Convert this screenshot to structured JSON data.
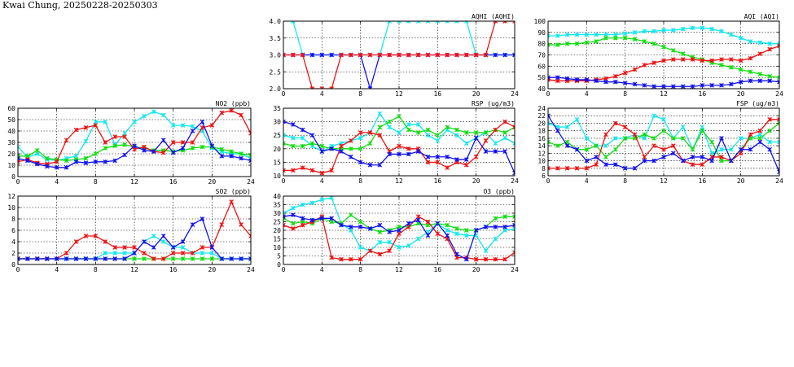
{
  "page": {
    "title": "Kwai Chung, 20250228-20250303"
  },
  "colors": {
    "red": "#ee1111",
    "green": "#11dd11",
    "blue": "#1111ee",
    "cyan": "#11e8ee"
  },
  "chart_data": [
    {
      "id": "aqhi",
      "type": "line",
      "title": "AQHI (AQHI)",
      "xlim": [
        0,
        24
      ],
      "xticks": [
        0,
        4,
        8,
        12,
        16,
        20,
        24
      ],
      "ylim": [
        2.0,
        4.0
      ],
      "yticks": [
        "2.0",
        "2.5",
        "3.0",
        "3.5",
        "4.0"
      ],
      "grid": true,
      "legend": "none",
      "series": [
        {
          "color": "cyan",
          "values": [
            4.05,
            4,
            3,
            3,
            3,
            3,
            3,
            3,
            3,
            3,
            3,
            4,
            4,
            4,
            4,
            4,
            4,
            4,
            4,
            4,
            3,
            3,
            3,
            3,
            3
          ]
        },
        {
          "color": "blue",
          "values": [
            3,
            3,
            3,
            3,
            3,
            3,
            3,
            3,
            3,
            2,
            3,
            3,
            3,
            3,
            3,
            3,
            3,
            3,
            3,
            3,
            3,
            3,
            3,
            3,
            3
          ]
        },
        {
          "color": "red",
          "values": [
            3,
            3,
            3,
            2,
            2,
            2,
            3,
            3,
            3,
            3,
            3,
            3,
            3,
            3,
            3,
            3,
            3,
            3,
            3,
            3,
            3,
            3,
            4,
            4,
            4
          ]
        }
      ]
    },
    {
      "id": "aqi",
      "type": "line",
      "title": "AQI (AQI)",
      "xlim": [
        0,
        24
      ],
      "xticks": [
        0,
        4,
        8,
        12,
        16,
        20,
        24
      ],
      "ylim": [
        40,
        100
      ],
      "yticks": [
        "40",
        "50",
        "60",
        "70",
        "80",
        "90",
        "100"
      ],
      "grid": true,
      "legend": "none",
      "series": [
        {
          "color": "cyan",
          "values": [
            87,
            87,
            88,
            88,
            88,
            88,
            88,
            88,
            89,
            90,
            91,
            91,
            92,
            92,
            93,
            94,
            94,
            93,
            91,
            88,
            85,
            82,
            81,
            80,
            80
          ]
        },
        {
          "color": "green",
          "values": [
            79,
            79,
            80,
            80,
            81,
            82,
            85,
            85,
            85,
            84,
            82,
            80,
            77,
            74,
            71,
            68,
            66,
            63,
            61,
            59,
            57,
            55,
            53,
            51,
            50
          ]
        },
        {
          "color": "red",
          "values": [
            48,
            47,
            47,
            47,
            47,
            48,
            49,
            51,
            54,
            57,
            61,
            63,
            65,
            66,
            66,
            66,
            65,
            65,
            66,
            66,
            65,
            67,
            71,
            75,
            78
          ]
        },
        {
          "color": "blue",
          "values": [
            50,
            50,
            49,
            48,
            48,
            47,
            46,
            46,
            45,
            44,
            43,
            42,
            42,
            42,
            42,
            42,
            43,
            43,
            43,
            44,
            46,
            47,
            47,
            47,
            46
          ]
        }
      ]
    },
    {
      "id": "no2",
      "type": "line",
      "title": "NO2 (ppb)",
      "xlim": [
        0,
        24
      ],
      "xticks": [
        0,
        4,
        8,
        12,
        16,
        20,
        24
      ],
      "ylim": [
        0,
        60
      ],
      "yticks": [
        "0",
        "10",
        "20",
        "30",
        "40",
        "50",
        "60"
      ],
      "grid": true,
      "legend": "none",
      "series": [
        {
          "color": "cyan",
          "values": [
            26,
            17,
            20,
            15,
            14,
            16,
            18,
            31,
            48,
            48,
            28,
            38,
            48,
            53,
            57,
            54,
            45,
            45,
            44,
            40,
            25,
            22,
            20,
            20,
            16
          ]
        },
        {
          "color": "green",
          "values": [
            18,
            18,
            23,
            16,
            15,
            14,
            15,
            16,
            20,
            25,
            27,
            28,
            26,
            25,
            23,
            23,
            22,
            23,
            25,
            26,
            26,
            24,
            22,
            20,
            19
          ]
        },
        {
          "color": "red",
          "values": [
            13,
            15,
            12,
            11,
            13,
            32,
            41,
            43,
            45,
            30,
            35,
            35,
            24,
            26,
            22,
            21,
            30,
            30,
            30,
            43,
            45,
            56,
            58,
            54,
            38
          ]
        },
        {
          "color": "blue",
          "values": [
            16,
            14,
            11,
            9,
            8,
            8,
            13,
            12,
            13,
            13,
            14,
            19,
            27,
            23,
            22,
            32,
            21,
            25,
            40,
            48,
            27,
            18,
            18,
            16,
            14
          ]
        }
      ]
    },
    {
      "id": "rsp",
      "type": "line",
      "title": "RSP (ug/m3)",
      "xlim": [
        0,
        24
      ],
      "xticks": [
        0,
        4,
        8,
        12,
        16,
        20,
        24
      ],
      "ylim": [
        10,
        35
      ],
      "yticks": [
        "10",
        "15",
        "20",
        "25",
        "30",
        "35"
      ],
      "grid": true,
      "legend": "none",
      "series": [
        {
          "color": "cyan",
          "values": [
            25,
            24,
            24,
            21,
            19,
            21,
            22,
            23,
            24,
            26,
            33,
            28,
            26,
            29,
            29,
            25,
            23,
            27,
            25,
            22,
            24,
            26,
            22,
            24,
            22
          ]
        },
        {
          "color": "green",
          "values": [
            22,
            21,
            21,
            22,
            21,
            20,
            20,
            20,
            20,
            22,
            28,
            30,
            32,
            27,
            26,
            27,
            25,
            28,
            27,
            26,
            26,
            26,
            27,
            26,
            28
          ]
        },
        {
          "color": "red",
          "values": [
            12,
            12,
            13,
            12,
            11,
            12,
            21,
            23,
            26,
            26,
            25,
            19,
            21,
            20,
            20,
            15,
            15,
            13,
            15,
            14,
            17,
            23,
            27,
            30,
            28
          ]
        },
        {
          "color": "blue",
          "values": [
            30,
            29,
            27,
            25,
            19,
            20,
            19,
            17,
            15,
            14,
            14,
            18,
            18,
            18,
            19,
            17,
            17,
            17,
            16,
            16,
            24,
            19,
            19,
            19,
            11
          ]
        }
      ]
    },
    {
      "id": "fsp",
      "type": "line",
      "title": "FSP (ug/m3)",
      "xlim": [
        0,
        24
      ],
      "xticks": [
        0,
        4,
        8,
        12,
        16,
        20,
        24
      ],
      "ylim": [
        6,
        24
      ],
      "yticks": [
        "6",
        "8",
        "10",
        "12",
        "14",
        "16",
        "18",
        "20",
        "22",
        "24"
      ],
      "grid": true,
      "legend": "none",
      "series": [
        {
          "color": "cyan",
          "values": [
            20,
            19,
            19,
            21,
            16,
            14,
            14,
            16,
            16,
            17,
            16,
            22,
            21,
            16,
            19,
            13,
            19,
            12,
            13,
            13,
            16,
            16,
            17,
            15,
            15
          ]
        },
        {
          "color": "green",
          "values": [
            15,
            14,
            15,
            13,
            13,
            14,
            11,
            13,
            16,
            16,
            17,
            16,
            18,
            16,
            16,
            13,
            18,
            15,
            10,
            10,
            13,
            16,
            16,
            18,
            20
          ]
        },
        {
          "color": "red",
          "values": [
            8,
            8,
            8,
            8,
            8,
            9,
            17,
            20,
            19,
            17,
            11,
            14,
            13,
            14,
            10,
            9,
            9,
            11,
            11,
            10,
            12,
            17,
            18,
            21,
            21
          ]
        },
        {
          "color": "blue",
          "values": [
            22,
            18,
            14,
            13,
            10,
            11,
            9,
            9,
            8,
            8,
            10,
            10,
            11,
            12,
            10,
            11,
            11,
            10,
            16,
            10,
            13,
            13,
            15,
            13,
            7
          ]
        }
      ]
    },
    {
      "id": "so2",
      "type": "line",
      "title": "SO2 (ppb)",
      "xlim": [
        0,
        24
      ],
      "xticks": [
        0,
        4,
        8,
        12,
        16,
        20,
        24
      ],
      "ylim": [
        0,
        12
      ],
      "yticks": [
        "0",
        "2",
        "4",
        "6",
        "8",
        "10",
        "12"
      ],
      "grid": true,
      "legend": "none",
      "series": [
        {
          "color": "cyan",
          "values": [
            1,
            1,
            1,
            1,
            1,
            1,
            1,
            1,
            1,
            2,
            2,
            2,
            2,
            4,
            5,
            4,
            3,
            3,
            2,
            2,
            2,
            1,
            1,
            1,
            1
          ]
        },
        {
          "color": "green",
          "values": [
            1,
            1,
            1,
            1,
            1,
            1,
            1,
            1,
            1,
            1,
            1,
            1,
            1,
            1,
            1,
            1,
            1,
            1,
            1,
            1,
            1,
            1,
            1,
            1,
            1
          ]
        },
        {
          "color": "red",
          "values": [
            1,
            1,
            1,
            1,
            1,
            2,
            4,
            5,
            5,
            4,
            3,
            3,
            3,
            2,
            1,
            1,
            2,
            2,
            2,
            3,
            3,
            7,
            11,
            7,
            5
          ]
        },
        {
          "color": "blue",
          "values": [
            1,
            1,
            1,
            1,
            1,
            1,
            1,
            1,
            1,
            1,
            1,
            1,
            2,
            4,
            3,
            5,
            3,
            4,
            7,
            8,
            3,
            1,
            1,
            1,
            1
          ]
        }
      ]
    },
    {
      "id": "o3",
      "type": "line",
      "title": "O3 (ppb)",
      "xlim": [
        0,
        24
      ],
      "xticks": [
        0,
        4,
        8,
        12,
        16,
        20,
        24
      ],
      "ylim": [
        0,
        40
      ],
      "yticks": [
        "0",
        "5",
        "10",
        "15",
        "20",
        "25",
        "30",
        "35",
        "40"
      ],
      "grid": true,
      "legend": "none",
      "series": [
        {
          "color": "cyan",
          "values": [
            30,
            33,
            35,
            36,
            38,
            39,
            24,
            20,
            10,
            8,
            13,
            13,
            10,
            11,
            15,
            19,
            24,
            20,
            18,
            17,
            17,
            8,
            15,
            20,
            21
          ]
        },
        {
          "color": "green",
          "values": [
            27,
            24,
            25,
            24,
            27,
            25,
            24,
            29,
            25,
            21,
            19,
            20,
            22,
            22,
            24,
            23,
            24,
            23,
            21,
            20,
            20,
            22,
            27,
            28,
            28
          ]
        },
        {
          "color": "red",
          "values": [
            23,
            21,
            23,
            25,
            28,
            4,
            3,
            3,
            3,
            8,
            6,
            8,
            18,
            22,
            28,
            25,
            18,
            15,
            4,
            4,
            3,
            3,
            3,
            3,
            7
          ]
        },
        {
          "color": "blue",
          "values": [
            28,
            29,
            27,
            26,
            27,
            27,
            23,
            22,
            22,
            21,
            23,
            19,
            20,
            24,
            26,
            17,
            24,
            17,
            6,
            3,
            20,
            22,
            22,
            22,
            23
          ]
        }
      ]
    }
  ]
}
